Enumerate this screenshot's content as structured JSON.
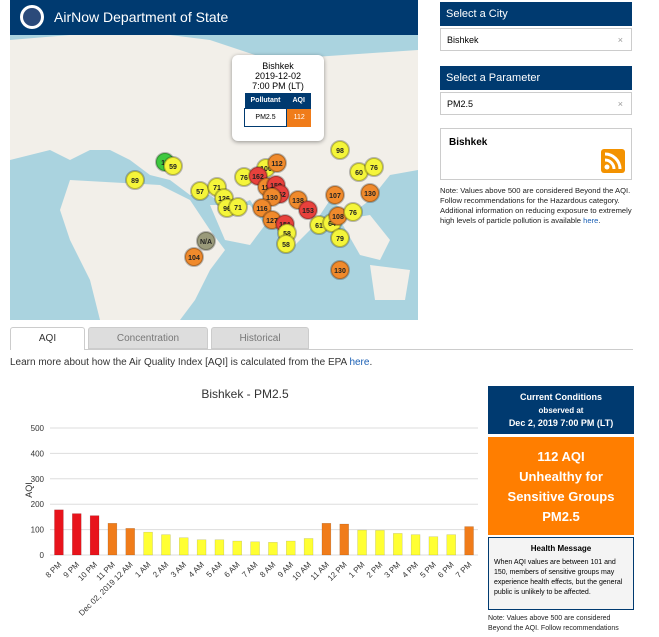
{
  "header": {
    "title": "AirNow Department of State"
  },
  "sidebar": {
    "city_label": "Select a City",
    "city": "Bishkek",
    "parameter_label": "Select a Parameter",
    "parameter": "PM2.5",
    "clear_icon": "×",
    "feed_title": "Bishkek",
    "note": "Note: Values above 500 are considered Beyond the AQI. Follow recommendations for the Hazardous category. Additional information on reducing exposure to extremely high levels of particle pollution is available",
    "note_link": "here",
    "note_end": "."
  },
  "map": {
    "popup": {
      "city": "Bishkek",
      "date": "2019-12-02",
      "time": "7:00 PM (LT)",
      "headers": [
        "Pollutant",
        "AQI"
      ],
      "pollutant": "PM2.5",
      "aqi": 112
    },
    "markers": [
      {
        "label": "89",
        "color": "#f5f53a"
      },
      {
        "label": "18",
        "color": "#3fc93f"
      },
      {
        "label": "59",
        "color": "#f5f53a"
      },
      {
        "label": "57",
        "color": "#f5f53a"
      },
      {
        "label": "71",
        "color": "#f5f53a"
      },
      {
        "label": "76",
        "color": "#f5f53a"
      },
      {
        "label": "100",
        "color": "#f5f53a"
      },
      {
        "label": "162",
        "color": "#e8413c"
      },
      {
        "label": "115",
        "color": "#f08a2c"
      },
      {
        "label": "159",
        "color": "#e8413c"
      },
      {
        "label": "152",
        "color": "#e8413c"
      },
      {
        "label": "130",
        "color": "#f08a2c"
      },
      {
        "label": "126",
        "color": "#f5f53a"
      },
      {
        "label": "96",
        "color": "#f5f53a"
      },
      {
        "label": "71",
        "color": "#f5f53a"
      },
      {
        "label": "116",
        "color": "#f08a2c"
      },
      {
        "label": "138",
        "color": "#f08a2c"
      },
      {
        "label": "153",
        "color": "#e8413c"
      },
      {
        "label": "127",
        "color": "#f08a2c"
      },
      {
        "label": "151",
        "color": "#e8413c"
      },
      {
        "label": "58",
        "color": "#f5f53a"
      },
      {
        "label": "58",
        "color": "#f5f53a"
      },
      {
        "label": "61",
        "color": "#f5f53a"
      },
      {
        "label": "64",
        "color": "#f5f53a"
      },
      {
        "label": "108",
        "color": "#f08a2c"
      },
      {
        "label": "76",
        "color": "#f5f53a"
      },
      {
        "label": "107",
        "color": "#f08a2c"
      },
      {
        "label": "130",
        "color": "#f08a2c"
      },
      {
        "label": "60",
        "color": "#f5f53a"
      },
      {
        "label": "76",
        "color": "#f5f53a"
      },
      {
        "label": "98",
        "color": "#f5f53a"
      },
      {
        "label": "112",
        "color": "#f08a2c"
      },
      {
        "label": "79",
        "color": "#f5f53a"
      },
      {
        "label": "N/A",
        "color": "#9a9a7a"
      },
      {
        "label": "104",
        "color": "#f08a2c"
      },
      {
        "label": "130",
        "color": "#f08a2c"
      }
    ]
  },
  "tabs": [
    "AQI",
    "Concentration",
    "Historical"
  ],
  "learn_more": {
    "text": "Learn more about how the Air Quality Index [AQI] is calculated from the EPA",
    "link": "here",
    "end": "."
  },
  "chart_data": {
    "type": "bar",
    "title": "Bishkek - PM2.5",
    "y_label": "AQI",
    "categories": [
      "8 PM",
      "9 PM",
      "10 PM",
      "11 PM",
      "Dec 02, 2019 12 AM",
      "1 AM",
      "2 AM",
      "3 AM",
      "4 AM",
      "5 AM",
      "6 AM",
      "7 AM",
      "8 AM",
      "9 AM",
      "10 AM",
      "11 AM",
      "12 PM",
      "1 PM",
      "2 PM",
      "3 PM",
      "4 PM",
      "5 PM",
      "6 PM",
      "7 PM"
    ],
    "values": [
      178,
      163,
      155,
      125,
      105,
      90,
      80,
      68,
      60,
      60,
      55,
      52,
      50,
      55,
      65,
      125,
      122,
      98,
      97,
      85,
      80,
      72,
      80,
      112
    ],
    "colors": [
      "#e8141c",
      "#e8141c",
      "#e8141c",
      "#f07c1a",
      "#f07c1a",
      "#ffff33",
      "#ffff33",
      "#ffff33",
      "#ffff33",
      "#ffff33",
      "#ffff33",
      "#ffff33",
      "#ffff33",
      "#ffff33",
      "#ffff33",
      "#f07c1a",
      "#f07c1a",
      "#ffff33",
      "#ffff33",
      "#ffff33",
      "#ffff33",
      "#ffff33",
      "#ffff33",
      "#f07c1a"
    ],
    "ylim": [
      0,
      500
    ],
    "yticks": [
      0,
      100,
      200,
      300,
      400,
      500
    ],
    "grid": true
  },
  "current": {
    "title": "Current Conditions",
    "observed": "observed at",
    "time": "Dec 2, 2019 7:00 PM (LT)",
    "aqi": "112 AQI",
    "category": "Unhealthy for Sensitive Groups",
    "parameter": "PM2.5",
    "health_title": "Health Message",
    "health_text": "When AQI values are between 101 and 150, members of sensitive groups may experience health effects, but the general public is unlikely to be affected.",
    "note": "Note: Values above 500 are considered Beyond the AQI. Follow recommendations"
  }
}
